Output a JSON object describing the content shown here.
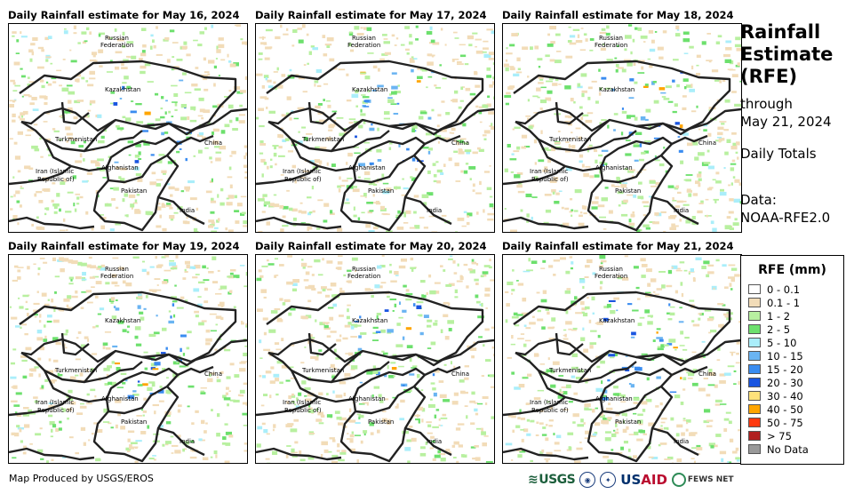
{
  "panels": [
    {
      "title": "Daily Rainfall estimate for May 16, 2024",
      "seed": 16
    },
    {
      "title": "Daily Rainfall estimate for May 17, 2024",
      "seed": 17
    },
    {
      "title": "Daily Rainfall estimate for May 18, 2024",
      "seed": 18
    },
    {
      "title": "Daily Rainfall estimate for May 19, 2024",
      "seed": 19
    },
    {
      "title": "Daily Rainfall estimate for May 20, 2024",
      "seed": 20
    },
    {
      "title": "Daily Rainfall estimate for May 21, 2024",
      "seed": 21
    }
  ],
  "map_labels": {
    "russia_1": "Russian",
    "russia_2": "Federation",
    "kazakhstan": "Kazakhstan",
    "turkmenistan": "Turkmenistan",
    "china": "China",
    "iran_1": "Iran  (Islamic",
    "iran_2": "Republic of)",
    "afghanistan": "Afghanistan",
    "pakistan": "Pakistan",
    "india": "India"
  },
  "side": {
    "title_1": "Rainfall",
    "title_2": "Estimate",
    "title_3": "(RFE)",
    "through": "through",
    "date": "May 21, 2024",
    "totals": "Daily Totals",
    "data_label": "Data:",
    "data_source": "NOAA-RFE2.0"
  },
  "legend": {
    "title": "RFE (mm)",
    "items": [
      {
        "label": "0 - 0.1",
        "color": "#ffffff"
      },
      {
        "label": "0.1 - 1",
        "color": "#f2dcb8"
      },
      {
        "label": "1 - 2",
        "color": "#b8f0a0"
      },
      {
        "label": "2 - 5",
        "color": "#6de06d"
      },
      {
        "label": "5 - 10",
        "color": "#aaeefa"
      },
      {
        "label": "10 - 15",
        "color": "#6ab4f2"
      },
      {
        "label": "15 - 20",
        "color": "#3a8cf0"
      },
      {
        "label": "20 - 30",
        "color": "#1a55e0"
      },
      {
        "label": "30 - 40",
        "color": "#ffe27a"
      },
      {
        "label": "40 - 50",
        "color": "#ffa500"
      },
      {
        "label": "50 - 75",
        "color": "#ff3a10"
      },
      {
        "label": "> 75",
        "color": "#b02020"
      },
      {
        "label": "No Data",
        "color": "#999999"
      }
    ]
  },
  "footer": "Map Produced by USGS/EROS",
  "logos": {
    "usgs": "USGS",
    "usaid_1": "US",
    "usaid_2": "AID",
    "fews": "FEWS NET"
  }
}
